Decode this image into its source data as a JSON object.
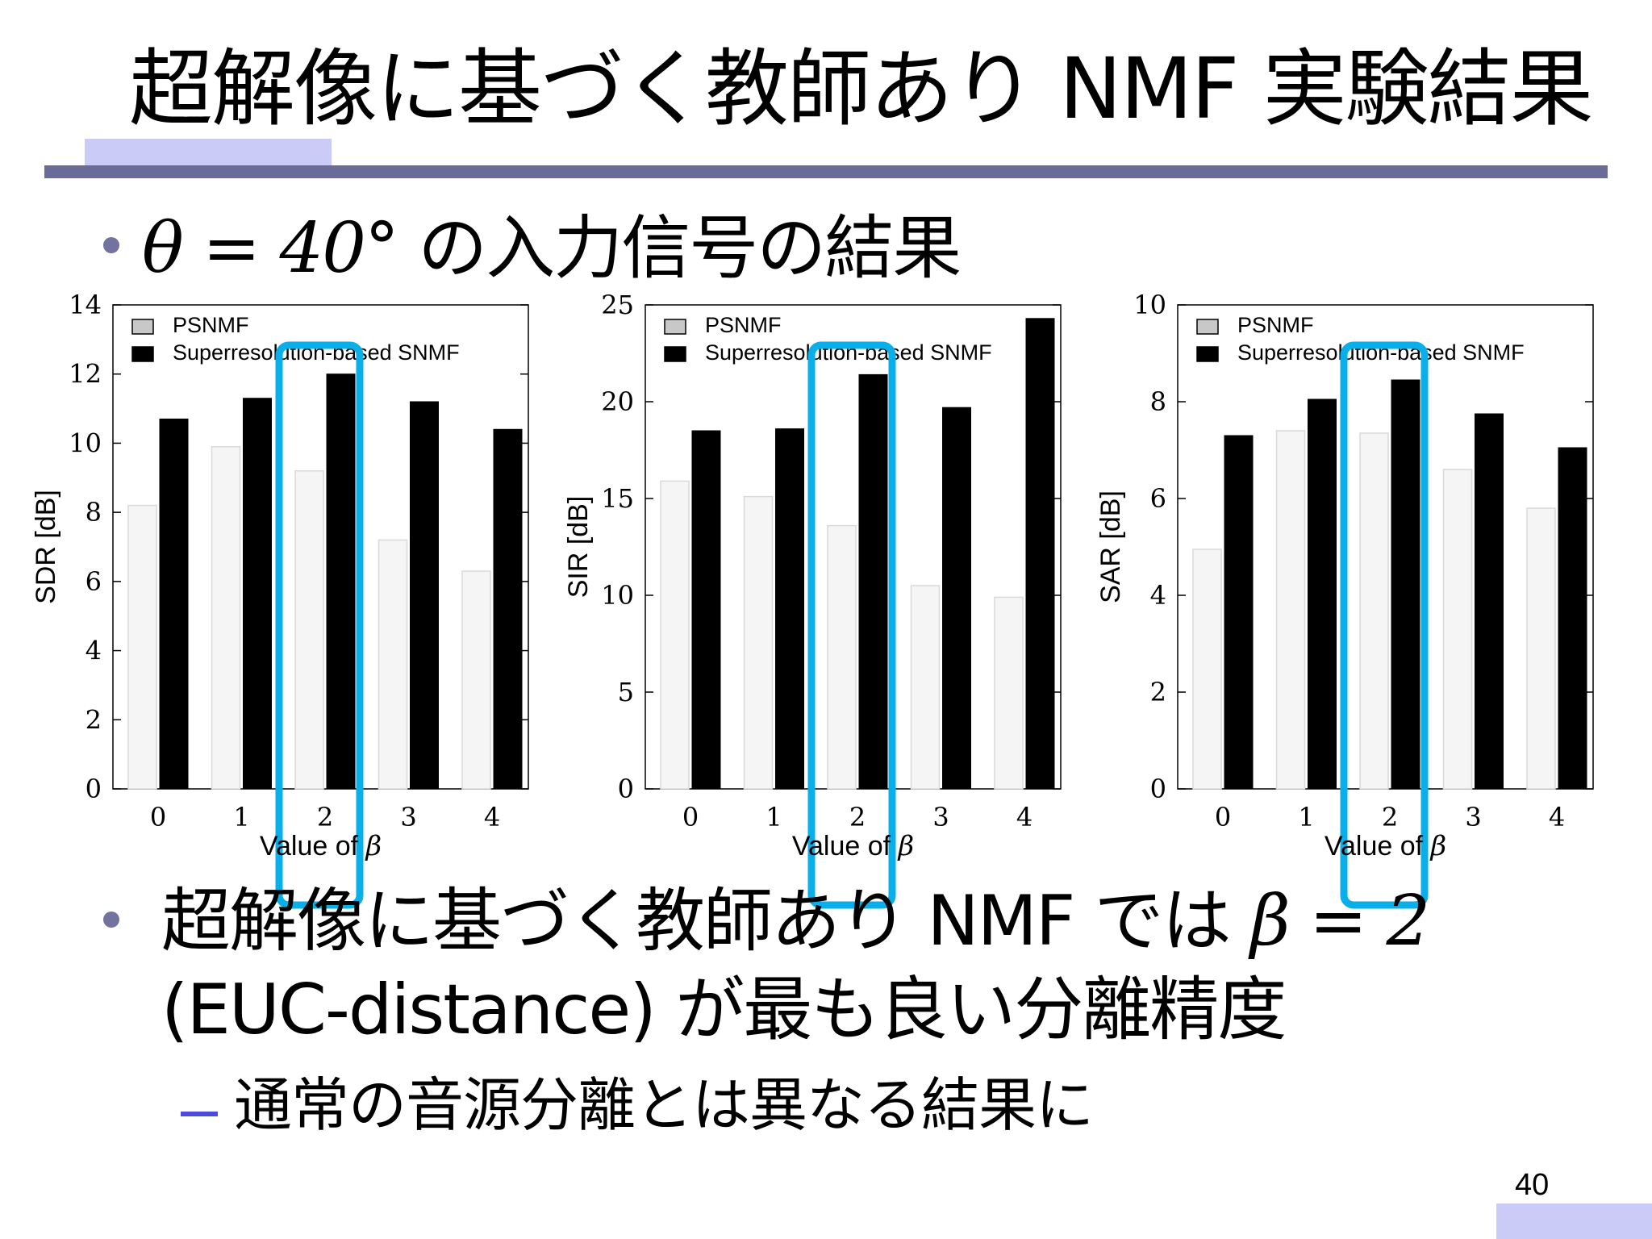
{
  "slide": {
    "title": "超解像に基づく教師あり NMF 実験結果",
    "bullet1": {
      "math": "θ = 40°",
      "text": " の入力信号の結果"
    },
    "bullet2": {
      "text_before": "超解像に基づく教師あり NMF では",
      "math": "β = 2",
      "line2": "(EUC-distance) が最も良い分離精度"
    },
    "sub_bullet": "通常の音源分離とは異なる結果に",
    "page_number": "40"
  },
  "colors": {
    "rule": "#6b6b9a",
    "accent": "#cbcbf7",
    "highlight": "#0aaee8",
    "psnmf_bar": "#f5f5f5",
    "snmf_bar": "#000000",
    "bullet": "#73739f",
    "dash": "#4b4bdc"
  },
  "chart_data": [
    {
      "type": "bar",
      "categories": [
        "0",
        "1",
        "2",
        "3",
        "4"
      ],
      "series": [
        {
          "name": "PSNMF",
          "values": [
            8.2,
            9.9,
            9.2,
            7.2,
            6.3
          ]
        },
        {
          "name": "Superresolution-based SNMF",
          "values": [
            10.7,
            11.3,
            12.0,
            11.2,
            10.4
          ]
        }
      ],
      "ylabel": "SDR [dB]",
      "xlabel_text": "Value of ",
      "xlabel_sym": "β",
      "ylim": [
        0,
        14
      ],
      "yticks": [
        "0",
        "2",
        "4",
        "6",
        "8",
        "10",
        "12",
        "14"
      ],
      "highlight_category": "2",
      "legend_position": "top-left",
      "grid": false
    },
    {
      "type": "bar",
      "categories": [
        "0",
        "1",
        "2",
        "3",
        "4"
      ],
      "series": [
        {
          "name": "PSNMF",
          "values": [
            15.9,
            15.1,
            13.6,
            10.5,
            9.9
          ]
        },
        {
          "name": "Superresolution-based SNMF",
          "values": [
            18.5,
            18.6,
            21.4,
            19.7,
            24.3
          ]
        }
      ],
      "ylabel": "SIR [dB]",
      "xlabel_text": "Value of ",
      "xlabel_sym": "β",
      "ylim": [
        0,
        25
      ],
      "yticks": [
        "0",
        "5",
        "10",
        "15",
        "20",
        "25"
      ],
      "highlight_category": "2",
      "legend_position": "top-left",
      "grid": false
    },
    {
      "type": "bar",
      "categories": [
        "0",
        "1",
        "2",
        "3",
        "4"
      ],
      "series": [
        {
          "name": "PSNMF",
          "values": [
            4.95,
            7.4,
            7.35,
            6.6,
            5.8
          ]
        },
        {
          "name": "Superresolution-based SNMF",
          "values": [
            7.3,
            8.05,
            8.45,
            7.75,
            7.05
          ]
        }
      ],
      "ylabel": "SAR [dB]",
      "xlabel_text": "Value of ",
      "xlabel_sym": "β",
      "ylim": [
        0,
        10
      ],
      "yticks": [
        "0",
        "2",
        "4",
        "6",
        "8",
        "10"
      ],
      "highlight_category": "2",
      "legend_position": "top-left",
      "grid": false
    }
  ]
}
